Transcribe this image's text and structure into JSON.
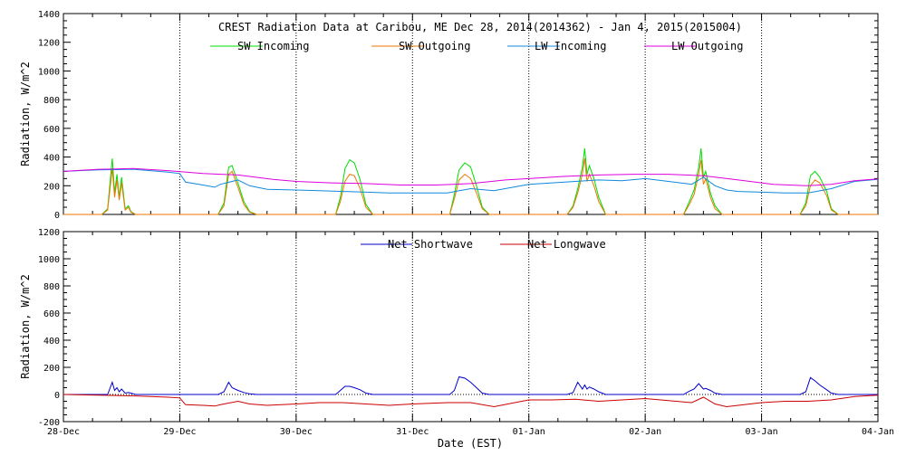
{
  "chart_data": [
    {
      "type": "line",
      "title": "CREST Radiation Data at Caribou, ME   Dec 28, 2014(2014362) - Jan  4, 2015(2015004)",
      "ylabel": "Radiation, W/m^2",
      "xlabel": "",
      "ylim": [
        0,
        1400
      ],
      "yticks": [
        0,
        200,
        400,
        600,
        800,
        1000,
        1200,
        1400
      ],
      "xlim": [
        0,
        7
      ],
      "grid": true,
      "legend_position": "top",
      "series": [
        {
          "name": "SW Incoming",
          "color": "#00dd00",
          "x": [
            0,
            0.33,
            0.38,
            0.42,
            0.44,
            0.46,
            0.48,
            0.5,
            0.53,
            0.56,
            0.58,
            0.62,
            1.33,
            1.38,
            1.42,
            1.45,
            1.5,
            1.55,
            1.6,
            1.66,
            2.34,
            2.38,
            2.42,
            2.46,
            2.5,
            2.55,
            2.6,
            2.66,
            3.32,
            3.36,
            3.4,
            3.45,
            3.5,
            3.55,
            3.6,
            3.66,
            4.33,
            4.38,
            4.42,
            4.46,
            4.48,
            4.5,
            4.52,
            4.56,
            4.6,
            4.66,
            5.33,
            5.38,
            5.42,
            5.46,
            5.48,
            5.5,
            5.52,
            5.56,
            5.6,
            5.66,
            6.33,
            6.38,
            6.42,
            6.46,
            6.5,
            6.56,
            6.6,
            6.66,
            7
          ],
          "y": [
            0,
            0,
            40,
            390,
            150,
            280,
            120,
            260,
            40,
            60,
            20,
            0,
            0,
            80,
            330,
            340,
            220,
            90,
            20,
            0,
            0,
            120,
            320,
            380,
            360,
            240,
            70,
            0,
            0,
            140,
            310,
            360,
            330,
            200,
            50,
            0,
            0,
            60,
            180,
            330,
            460,
            280,
            340,
            250,
            120,
            0,
            0,
            90,
            170,
            330,
            460,
            260,
            300,
            150,
            60,
            0,
            0,
            80,
            270,
            300,
            260,
            160,
            40,
            0,
            0
          ]
        },
        {
          "name": "SW Outgoing",
          "color": "#ee7700",
          "x": [
            0,
            0.33,
            0.38,
            0.42,
            0.44,
            0.46,
            0.48,
            0.5,
            0.53,
            0.56,
            0.58,
            0.62,
            1.33,
            1.38,
            1.42,
            1.45,
            1.5,
            1.55,
            1.6,
            1.66,
            2.34,
            2.38,
            2.42,
            2.46,
            2.5,
            2.55,
            2.6,
            2.66,
            3.32,
            3.36,
            3.4,
            3.45,
            3.5,
            3.55,
            3.6,
            3.66,
            4.33,
            4.38,
            4.42,
            4.46,
            4.48,
            4.5,
            4.52,
            4.56,
            4.6,
            4.66,
            5.33,
            5.38,
            5.42,
            5.46,
            5.48,
            5.5,
            5.52,
            5.56,
            5.6,
            5.66,
            6.33,
            6.38,
            6.42,
            6.46,
            6.5,
            6.56,
            6.6,
            6.66,
            7
          ],
          "y": [
            0,
            0,
            30,
            320,
            120,
            240,
            100,
            220,
            30,
            50,
            15,
            0,
            0,
            60,
            280,
            300,
            190,
            70,
            15,
            0,
            0,
            90,
            230,
            280,
            270,
            180,
            50,
            0,
            0,
            110,
            240,
            280,
            250,
            150,
            40,
            0,
            0,
            50,
            150,
            280,
            390,
            230,
            280,
            200,
            90,
            0,
            0,
            70,
            140,
            280,
            380,
            210,
            250,
            120,
            40,
            0,
            0,
            60,
            200,
            240,
            220,
            130,
            30,
            0,
            0
          ]
        },
        {
          "name": "LW Incoming",
          "color": "#1188dd",
          "x": [
            0,
            0.3,
            0.6,
            0.9,
            1.0,
            1.05,
            1.2,
            1.3,
            1.35,
            1.5,
            1.6,
            1.75,
            2.0,
            2.2,
            2.4,
            2.6,
            2.8,
            3.0,
            3.3,
            3.5,
            3.7,
            4.0,
            4.2,
            4.4,
            4.6,
            4.8,
            5.0,
            5.2,
            5.4,
            5.5,
            5.6,
            5.7,
            5.8,
            6.0,
            6.2,
            6.4,
            6.6,
            6.8,
            7
          ],
          "y": [
            300,
            310,
            315,
            295,
            285,
            225,
            205,
            190,
            210,
            240,
            200,
            175,
            170,
            165,
            160,
            155,
            150,
            150,
            150,
            180,
            165,
            210,
            220,
            230,
            240,
            235,
            250,
            230,
            210,
            260,
            200,
            170,
            160,
            155,
            150,
            150,
            180,
            230,
            245
          ]
        },
        {
          "name": "LW Outgoing",
          "color": "#dd00dd",
          "x": [
            0,
            0.3,
            0.6,
            0.9,
            1.2,
            1.5,
            1.8,
            2.0,
            2.3,
            2.6,
            2.9,
            3.2,
            3.5,
            3.8,
            4.0,
            4.3,
            4.6,
            4.9,
            5.2,
            5.5,
            5.8,
            6.1,
            6.4,
            6.6,
            6.8,
            7
          ],
          "y": [
            300,
            315,
            320,
            305,
            285,
            275,
            245,
            230,
            220,
            215,
            205,
            205,
            215,
            240,
            250,
            265,
            275,
            280,
            280,
            270,
            240,
            210,
            200,
            210,
            235,
            248
          ]
        }
      ]
    },
    {
      "type": "line",
      "title": "",
      "ylabel": "Radiation, W/m^2",
      "xlabel": "Date (EST)",
      "ylim": [
        -200,
        1200
      ],
      "yticks": [
        -200,
        0,
        200,
        400,
        600,
        800,
        1000,
        1200
      ],
      "xlim": [
        0,
        7
      ],
      "grid": true,
      "legend_position": "top",
      "categories": [
        "28-Dec",
        "29-Dec",
        "30-Dec",
        "31-Dec",
        "01-Jan",
        "02-Jan",
        "03-Jan",
        "04-Jan"
      ],
      "series": [
        {
          "name": "Net Shortwave",
          "color": "#0000cc",
          "x": [
            0,
            0.38,
            0.42,
            0.44,
            0.46,
            0.48,
            0.5,
            0.53,
            0.56,
            0.62,
            1.33,
            1.38,
            1.42,
            1.45,
            1.5,
            1.55,
            1.6,
            1.66,
            2.34,
            2.38,
            2.42,
            2.46,
            2.5,
            2.55,
            2.6,
            2.66,
            3.32,
            3.36,
            3.4,
            3.45,
            3.5,
            3.55,
            3.6,
            3.66,
            4.33,
            4.38,
            4.42,
            4.46,
            4.48,
            4.5,
            4.52,
            4.56,
            4.6,
            4.66,
            5.33,
            5.38,
            5.42,
            5.46,
            5.48,
            5.5,
            5.52,
            5.56,
            5.6,
            5.66,
            6.33,
            6.38,
            6.42,
            6.46,
            6.5,
            6.56,
            6.6,
            6.66,
            7
          ],
          "y": [
            0,
            0,
            90,
            30,
            50,
            20,
            40,
            10,
            15,
            0,
            0,
            20,
            90,
            50,
            30,
            15,
            5,
            0,
            0,
            30,
            60,
            60,
            50,
            35,
            10,
            0,
            0,
            30,
            130,
            120,
            90,
            50,
            10,
            0,
            0,
            15,
            90,
            40,
            70,
            40,
            55,
            40,
            20,
            0,
            0,
            25,
            40,
            80,
            60,
            40,
            45,
            30,
            10,
            0,
            0,
            20,
            125,
            100,
            70,
            35,
            10,
            0,
            0
          ]
        },
        {
          "name": "Net Longwave",
          "color": "#cc0000",
          "x": [
            0,
            0.3,
            0.6,
            0.9,
            1.0,
            1.05,
            1.2,
            1.3,
            1.35,
            1.5,
            1.6,
            1.75,
            2.0,
            2.2,
            2.4,
            2.6,
            2.8,
            3.0,
            3.3,
            3.5,
            3.7,
            4.0,
            4.2,
            4.4,
            4.6,
            4.8,
            5.0,
            5.2,
            5.4,
            5.5,
            5.6,
            5.7,
            5.8,
            6.0,
            6.2,
            6.4,
            6.6,
            6.8,
            7
          ],
          "y": [
            0,
            -5,
            -10,
            -20,
            -25,
            -75,
            -80,
            -85,
            -75,
            -50,
            -70,
            -80,
            -70,
            -60,
            -60,
            -70,
            -80,
            -70,
            -60,
            -60,
            -90,
            -40,
            -40,
            -35,
            -50,
            -40,
            -30,
            -45,
            -60,
            -20,
            -70,
            -90,
            -80,
            -60,
            -50,
            -50,
            -40,
            -15,
            -5
          ]
        }
      ]
    }
  ]
}
